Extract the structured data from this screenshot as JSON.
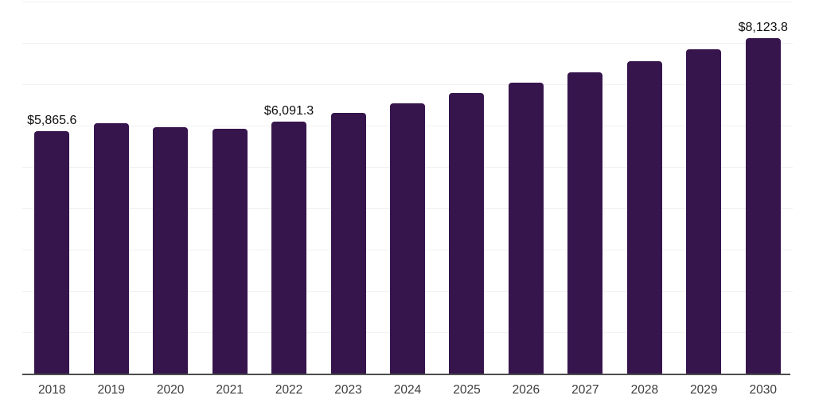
{
  "chart_data": {
    "type": "bar",
    "title": "",
    "xlabel": "",
    "ylabel": "",
    "categories": [
      "2018",
      "2019",
      "2020",
      "2021",
      "2022",
      "2023",
      "2024",
      "2025",
      "2026",
      "2027",
      "2028",
      "2029",
      "2030"
    ],
    "values": [
      5865.6,
      6065.0,
      5970.0,
      5915.0,
      6091.3,
      6314.5,
      6545.9,
      6785.8,
      7034.5,
      7292.3,
      7559.6,
      7836.6,
      8123.8
    ],
    "value_labels": [
      "$5,865.6",
      null,
      null,
      null,
      "$6,091.3",
      null,
      null,
      null,
      null,
      null,
      null,
      null,
      "$8,123.8"
    ],
    "ylim": [
      0,
      9000
    ],
    "gridline_step": 1000,
    "grid": "horizontal-only",
    "legend": "none",
    "colors": {
      "bar": "#36154D",
      "gridline": "#F1F1F1",
      "axis_line": "#4D4D4D",
      "value_label": "#0E0E0E",
      "tick_label": "#3C3C3C",
      "background": "#FFFFFF"
    }
  }
}
